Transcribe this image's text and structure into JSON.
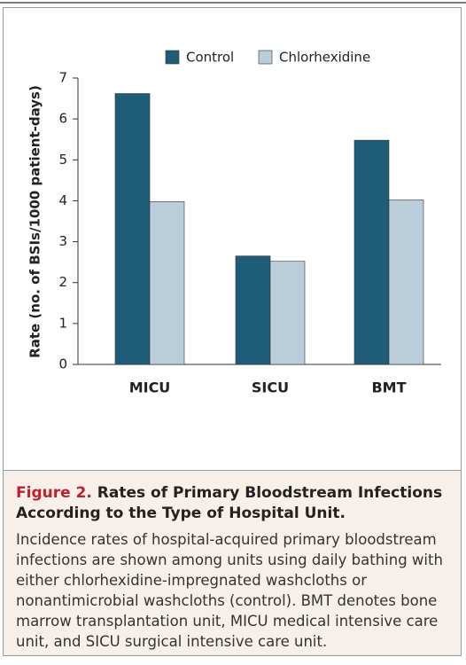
{
  "chart_data": {
    "type": "bar",
    "y_label": "Rate (no. of BSIs/1000 patient-days)",
    "categories": [
      "MICU",
      "SICU",
      "BMT"
    ],
    "series": [
      {
        "name": "Control",
        "color": "#1f5c78",
        "values": [
          6.62,
          2.65,
          5.48
        ]
      },
      {
        "name": "Chlorhexidine",
        "color": "#b9cddb",
        "values": [
          3.98,
          2.52,
          4.02
        ]
      }
    ],
    "ylim": [
      0,
      7
    ],
    "yticks": [
      0,
      1,
      2,
      3,
      4,
      5,
      6,
      7
    ],
    "grid": false,
    "legend": "top"
  },
  "caption": {
    "label": "Figure 2.",
    "title": "Rates of Primary Bloodstream Infections According to the Type of Hospital Unit.",
    "body": "Incidence rates of hospital-acquired primary bloodstream infections are shown among units using daily bathing with either chlorhexidine-impregnated washcloths or nonantimicrobial washcloths (control). BMT denotes bone marrow transplantation unit, MICU medical intensive care unit, and SICU surgical intensive care unit."
  }
}
